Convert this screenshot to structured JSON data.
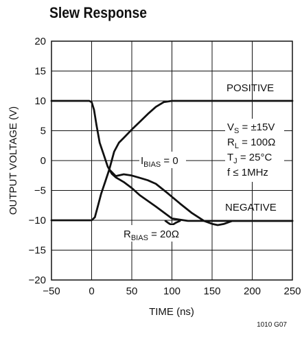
{
  "chart_data": {
    "type": "line",
    "title": "Slew Response",
    "xlabel": "TIME (ns)",
    "ylabel": "OUTPUT VOLTAGE (V)",
    "xlim": [
      -50,
      250
    ],
    "ylim": [
      -20,
      20
    ],
    "xticks": [
      "−50",
      "0",
      "50",
      "100",
      "150",
      "200",
      "250"
    ],
    "yticks": [
      "20",
      "15",
      "10",
      "5",
      "0",
      "−5",
      "−10",
      "−15",
      "−20"
    ],
    "grid": true,
    "series": [
      {
        "name": "POSITIVE",
        "points": [
          [
            -50,
            10
          ],
          [
            -3,
            10
          ],
          [
            0,
            9.8
          ],
          [
            3,
            8.5
          ],
          [
            6,
            6
          ],
          [
            10,
            3
          ],
          [
            15,
            1
          ],
          [
            20,
            -1
          ],
          [
            25,
            -2.2
          ],
          [
            30,
            -2.8
          ],
          [
            35,
            -3.2
          ],
          [
            40,
            -3.6
          ],
          [
            50,
            -4.6
          ],
          [
            60,
            -5.8
          ],
          [
            80,
            -7.7
          ],
          [
            100,
            -9.7
          ],
          [
            120,
            -10.1
          ],
          [
            150,
            -10.1
          ],
          [
            250,
            -10.1
          ]
        ]
      },
      {
        "name": "NEGATIVE",
        "points": [
          [
            -50,
            -10
          ],
          [
            0,
            -10
          ],
          [
            4,
            -9.5
          ],
          [
            8,
            -7.5
          ],
          [
            12,
            -5.5
          ],
          [
            17,
            -3.5
          ],
          [
            22,
            -1.5
          ],
          [
            28,
            1.5
          ],
          [
            34,
            3
          ],
          [
            40,
            3.8
          ],
          [
            50,
            5.2
          ],
          [
            60,
            6.5
          ],
          [
            70,
            7.8
          ],
          [
            80,
            9
          ],
          [
            90,
            9.8
          ],
          [
            100,
            10
          ],
          [
            250,
            10
          ]
        ]
      },
      {
        "name": "IBIAS = 0",
        "points": [
          [
            22,
            -1.5
          ],
          [
            30,
            -2.6
          ],
          [
            40,
            -2.3
          ],
          [
            50,
            -2.5
          ],
          [
            60,
            -2.9
          ],
          [
            70,
            -3.3
          ],
          [
            80,
            -3.9
          ],
          [
            95,
            -5.5
          ],
          [
            110,
            -7.2
          ],
          [
            125,
            -8.8
          ],
          [
            140,
            -10.1
          ],
          [
            150,
            -10.6
          ],
          [
            157,
            -10.8
          ],
          [
            165,
            -10.6
          ],
          [
            175,
            -10.1
          ],
          [
            250,
            -10.1
          ]
        ]
      },
      {
        "name": "RBIAS = 20Ω",
        "points": [
          [
            92,
            -10.1
          ],
          [
            96,
            -10.5
          ],
          [
            100,
            -10.8
          ],
          [
            105,
            -10.4
          ],
          [
            110,
            -10.1
          ]
        ]
      }
    ],
    "annotations": {
      "positive": "POSITIVE",
      "negative": "NEGATIVE",
      "ibias_main": "I",
      "ibias_sub": "BIAS",
      "ibias_rest": " = 0",
      "rbias_main": "R",
      "rbias_sub": "BIAS",
      "rbias_rest": " = 20Ω",
      "cond1_main": "V",
      "cond1_sub": "S",
      "cond1_rest": " = ±15V",
      "cond2_main": "R",
      "cond2_sub": "L",
      "cond2_rest": " = 100Ω",
      "cond3_main": "T",
      "cond3_sub": "J",
      "cond3_rest": " = 25°C",
      "cond4": "f ≤ 1MHz"
    },
    "figure_id": "1010 G07"
  }
}
